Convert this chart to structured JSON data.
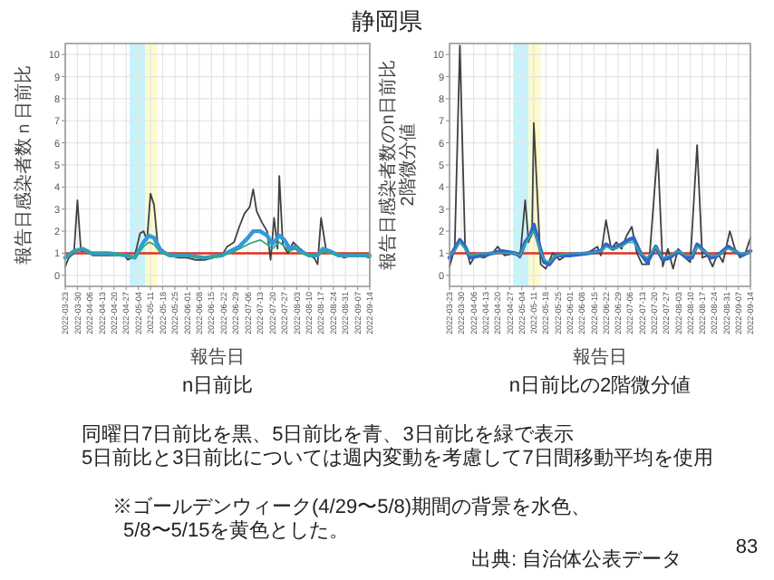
{
  "chart_data": [
    {
      "type": "line",
      "title": "静岡県",
      "xlabel": "報告日",
      "ylabel": "報告日感染者数ｎ日前比",
      "xlim": [
        "2022-03-23",
        "2022-09-14"
      ],
      "ylim": [
        -0.5,
        10.5
      ],
      "xticks": [
        "2022-03-23",
        "2022-03-30",
        "2022-04-06",
        "2022-04-13",
        "2022-04-20",
        "2022-04-27",
        "2022-05-04",
        "2022-05-11",
        "2022-05-18",
        "2022-05-25",
        "2022-06-01",
        "2022-06-08",
        "2022-06-15",
        "2022-06-22",
        "2022-06-29",
        "2022-07-06",
        "2022-07-13",
        "2022-07-20",
        "2022-07-27",
        "2022-08-03",
        "2022-08-10",
        "2022-08-17",
        "2022-08-24",
        "2022-08-31",
        "2022-09-07",
        "2022-09-14"
      ],
      "yticks": [
        0,
        1,
        2,
        3,
        4,
        5,
        6,
        7,
        8,
        9,
        10
      ],
      "grid": true,
      "bands": [
        {
          "axis": "x",
          "from": "2022-04-29",
          "to": "2022-05-08",
          "color": "#c6f3fb"
        },
        {
          "axis": "x",
          "from": "2022-05-08",
          "to": "2022-05-15",
          "color": "#fbfbcc"
        }
      ],
      "ref_lines": [
        {
          "axis": "y",
          "value": 1,
          "color": "#e03020"
        }
      ],
      "series": [
        {
          "color": "#404040",
          "x": [
            "2022-03-23",
            "2022-03-25",
            "2022-03-28",
            "2022-03-30",
            "2022-04-01",
            "2022-04-04",
            "2022-04-08",
            "2022-04-12",
            "2022-04-17",
            "2022-04-22",
            "2022-04-26",
            "2022-04-28",
            "2022-05-02",
            "2022-05-05",
            "2022-05-07",
            "2022-05-09",
            "2022-05-11",
            "2022-05-13",
            "2022-05-15",
            "2022-05-17",
            "2022-05-22",
            "2022-05-27",
            "2022-06-01",
            "2022-06-06",
            "2022-06-11",
            "2022-06-16",
            "2022-06-21",
            "2022-06-24",
            "2022-06-28",
            "2022-07-01",
            "2022-07-04",
            "2022-07-07",
            "2022-07-09",
            "2022-07-11",
            "2022-07-14",
            "2022-07-17",
            "2022-07-19",
            "2022-07-21",
            "2022-07-23",
            "2022-07-24",
            "2022-07-26",
            "2022-07-29",
            "2022-08-01",
            "2022-08-05",
            "2022-08-10",
            "2022-08-13",
            "2022-08-15",
            "2022-08-17",
            "2022-08-20",
            "2022-08-25",
            "2022-08-30",
            "2022-09-04",
            "2022-09-09",
            "2022-09-14"
          ],
          "values": [
            0.4,
            0.8,
            1.0,
            3.4,
            1.1,
            1.1,
            0.9,
            0.9,
            0.9,
            0.9,
            0.9,
            0.7,
            0.9,
            1.9,
            2.0,
            1.6,
            3.7,
            3.2,
            1.5,
            1.2,
            0.9,
            0.8,
            0.8,
            0.7,
            0.7,
            0.8,
            0.9,
            1.3,
            1.5,
            2.2,
            2.8,
            3.1,
            3.9,
            2.9,
            2.4,
            2.0,
            0.7,
            2.6,
            1.2,
            4.5,
            1.4,
            1.0,
            1.5,
            1.2,
            0.9,
            0.8,
            0.5,
            2.6,
            1.1,
            1.0,
            0.8,
            0.9,
            0.9,
            0.8
          ]
        },
        {
          "color": "#3399dd",
          "x": [
            "2022-03-23",
            "2022-03-28",
            "2022-04-02",
            "2022-04-07",
            "2022-04-17",
            "2022-04-27",
            "2022-05-02",
            "2022-05-07",
            "2022-05-10",
            "2022-05-13",
            "2022-05-17",
            "2022-05-22",
            "2022-06-01",
            "2022-06-11",
            "2022-06-21",
            "2022-06-26",
            "2022-07-01",
            "2022-07-06",
            "2022-07-09",
            "2022-07-13",
            "2022-07-17",
            "2022-07-20",
            "2022-07-24",
            "2022-07-27",
            "2022-07-30",
            "2022-08-02",
            "2022-08-05",
            "2022-08-10",
            "2022-08-15",
            "2022-08-18",
            "2022-08-22",
            "2022-08-27",
            "2022-09-04",
            "2022-09-14"
          ],
          "values": [
            0.8,
            1.1,
            1.2,
            1.0,
            1.0,
            0.9,
            0.8,
            1.5,
            1.8,
            1.7,
            1.1,
            0.9,
            0.9,
            0.8,
            0.9,
            1.1,
            1.3,
            1.7,
            2.0,
            2.0,
            1.8,
            1.4,
            1.8,
            1.6,
            1.2,
            1.3,
            1.1,
            0.9,
            0.9,
            1.2,
            1.1,
            0.9,
            0.9,
            0.9
          ]
        },
        {
          "color": "#33aa77",
          "x": [
            "2022-03-23",
            "2022-03-28",
            "2022-04-02",
            "2022-04-07",
            "2022-04-17",
            "2022-04-27",
            "2022-05-02",
            "2022-05-07",
            "2022-05-10",
            "2022-05-13",
            "2022-05-17",
            "2022-05-22",
            "2022-06-01",
            "2022-06-11",
            "2022-06-21",
            "2022-06-26",
            "2022-07-01",
            "2022-07-06",
            "2022-07-09",
            "2022-07-13",
            "2022-07-17",
            "2022-07-20",
            "2022-07-24",
            "2022-07-27",
            "2022-07-30",
            "2022-08-02",
            "2022-08-05",
            "2022-08-10",
            "2022-08-15",
            "2022-08-18",
            "2022-08-22",
            "2022-08-27",
            "2022-09-04",
            "2022-09-14"
          ],
          "values": [
            0.8,
            1.1,
            1.2,
            1.0,
            1.0,
            0.9,
            0.8,
            1.3,
            1.5,
            1.4,
            1.0,
            0.9,
            0.9,
            0.8,
            0.9,
            1.0,
            1.2,
            1.4,
            1.5,
            1.6,
            1.4,
            1.2,
            1.5,
            1.3,
            1.1,
            1.2,
            1.0,
            0.9,
            0.9,
            1.1,
            1.0,
            0.9,
            0.9,
            0.9
          ]
        }
      ],
      "annotations": [
        "n日前比"
      ]
    },
    {
      "type": "line",
      "xlabel": "報告日",
      "ylabel": "報告日感染者数のn日前比 2階微分値",
      "xlim": [
        "2022-03-23",
        "2022-09-14"
      ],
      "ylim": [
        -0.5,
        10.5
      ],
      "xticks": [
        "2022-03-23",
        "2022-03-30",
        "2022-04-06",
        "2022-04-13",
        "2022-04-20",
        "2022-04-27",
        "2022-05-04",
        "2022-05-11",
        "2022-05-18",
        "2022-05-25",
        "2022-06-01",
        "2022-06-08",
        "2022-06-15",
        "2022-06-22",
        "2022-06-29",
        "2022-07-06",
        "2022-07-13",
        "2022-07-20",
        "2022-07-27",
        "2022-08-03",
        "2022-08-10",
        "2022-08-17",
        "2022-08-24",
        "2022-08-31",
        "2022-09-07",
        "2022-09-14"
      ],
      "yticks": [
        0,
        1,
        2,
        3,
        4,
        5,
        6,
        7,
        8,
        9,
        10
      ],
      "grid": true,
      "bands": [
        {
          "axis": "x",
          "from": "2022-04-29",
          "to": "2022-05-08",
          "color": "#c6f3fb"
        },
        {
          "axis": "x",
          "from": "2022-05-08",
          "to": "2022-05-15",
          "color": "#fbfbcc"
        }
      ],
      "ref_lines": [
        {
          "axis": "y",
          "value": 1,
          "color": "#e03020"
        }
      ],
      "series": [
        {
          "color": "#404040",
          "x": [
            "2022-03-23",
            "2022-03-26",
            "2022-03-29",
            "2022-04-01",
            "2022-04-04",
            "2022-04-07",
            "2022-04-12",
            "2022-04-17",
            "2022-04-20",
            "2022-04-24",
            "2022-04-30",
            "2022-05-03",
            "2022-05-06",
            "2022-05-08",
            "2022-05-10",
            "2022-05-11",
            "2022-05-15",
            "2022-05-18",
            "2022-05-22",
            "2022-05-26",
            "2022-06-01",
            "2022-06-11",
            "2022-06-17",
            "2022-06-19",
            "2022-06-22",
            "2022-06-25",
            "2022-06-28",
            "2022-07-01",
            "2022-07-04",
            "2022-07-07",
            "2022-07-10",
            "2022-07-13",
            "2022-07-17",
            "2022-07-22",
            "2022-07-25",
            "2022-07-28",
            "2022-07-31",
            "2022-08-03",
            "2022-08-07",
            "2022-08-10",
            "2022-08-14",
            "2022-08-17",
            "2022-08-20",
            "2022-08-23",
            "2022-08-26",
            "2022-08-29",
            "2022-09-02",
            "2022-09-05",
            "2022-09-08",
            "2022-09-11",
            "2022-09-14"
          ],
          "values": [
            0.4,
            1.2,
            10.4,
            1.4,
            0.5,
            0.9,
            0.8,
            1.0,
            1.3,
            0.9,
            1.0,
            0.8,
            3.4,
            1.5,
            2.0,
            6.9,
            0.5,
            0.3,
            1.0,
            0.7,
            1.0,
            1.0,
            1.3,
            0.9,
            2.5,
            1.2,
            1.5,
            1.2,
            1.8,
            2.2,
            1.0,
            0.5,
            0.5,
            5.7,
            0.4,
            1.2,
            0.3,
            1.2,
            0.8,
            0.6,
            5.9,
            0.8,
            0.9,
            0.4,
            1.0,
            0.6,
            2.0,
            1.2,
            0.8,
            1.0,
            1.7
          ]
        },
        {
          "color": "#3366cc",
          "x": [
            "2022-03-23",
            "2022-03-26",
            "2022-03-29",
            "2022-04-01",
            "2022-04-04",
            "2022-04-10",
            "2022-04-17",
            "2022-04-22",
            "2022-04-30",
            "2022-05-03",
            "2022-05-06",
            "2022-05-09",
            "2022-05-11",
            "2022-05-14",
            "2022-05-17",
            "2022-05-20",
            "2022-05-24",
            "2022-06-01",
            "2022-06-11",
            "2022-06-19",
            "2022-06-22",
            "2022-06-26",
            "2022-07-01",
            "2022-07-05",
            "2022-07-08",
            "2022-07-12",
            "2022-07-16",
            "2022-07-21",
            "2022-07-25",
            "2022-07-29",
            "2022-08-03",
            "2022-08-08",
            "2022-08-11",
            "2022-08-14",
            "2022-08-18",
            "2022-08-22",
            "2022-08-26",
            "2022-09-01",
            "2022-09-05",
            "2022-09-09",
            "2022-09-14"
          ],
          "values": [
            0.8,
            1.2,
            1.6,
            1.3,
            0.8,
            0.9,
            1.0,
            1.1,
            1.0,
            0.9,
            1.5,
            1.8,
            2.3,
            1.4,
            0.6,
            0.5,
            0.9,
            0.9,
            1.0,
            1.1,
            1.4,
            1.2,
            1.4,
            1.6,
            1.7,
            1.0,
            0.6,
            1.3,
            0.7,
            0.8,
            1.1,
            0.8,
            0.8,
            1.4,
            1.1,
            0.8,
            0.9,
            1.3,
            1.1,
            0.9,
            1.1
          ]
        },
        {
          "color": "#33aa99",
          "x": [
            "2022-03-23",
            "2022-03-26",
            "2022-03-29",
            "2022-04-01",
            "2022-04-04",
            "2022-04-10",
            "2022-04-17",
            "2022-04-22",
            "2022-04-30",
            "2022-05-03",
            "2022-05-06",
            "2022-05-09",
            "2022-05-11",
            "2022-05-14",
            "2022-05-17",
            "2022-05-20",
            "2022-05-24",
            "2022-06-01",
            "2022-06-11",
            "2022-06-19",
            "2022-06-22",
            "2022-06-26",
            "2022-07-01",
            "2022-07-05",
            "2022-07-08",
            "2022-07-12",
            "2022-07-16",
            "2022-07-21",
            "2022-07-25",
            "2022-07-29",
            "2022-08-03",
            "2022-08-08",
            "2022-08-11",
            "2022-08-14",
            "2022-08-18",
            "2022-08-22",
            "2022-08-26",
            "2022-09-01",
            "2022-09-05",
            "2022-09-09",
            "2022-09-14"
          ],
          "values": [
            0.9,
            1.1,
            1.5,
            1.2,
            0.9,
            1.0,
            1.0,
            1.0,
            1.0,
            0.9,
            1.4,
            1.8,
            2.0,
            1.3,
            0.7,
            0.6,
            0.9,
            1.0,
            1.0,
            1.1,
            1.3,
            1.2,
            1.3,
            1.5,
            1.5,
            1.0,
            0.8,
            1.3,
            0.8,
            0.9,
            1.1,
            0.9,
            0.9,
            1.3,
            1.1,
            0.9,
            0.9,
            1.2,
            1.1,
            1.0,
            1.0
          ]
        }
      ],
      "annotations": [
        "n日前比の2階微分値",
        "同曜日7日前比を黒、5日前比を青、3日前比を緑で表示",
        "5日前比と3日前比については週内変動を考慮して7日間移動平均を使用",
        "※ゴールデンウィーク(4/29〜5/8)期間の背景を水色、",
        "5/8〜5/15を黄色とした。",
        "出典: 自治体公表データ",
        "83"
      ]
    }
  ]
}
